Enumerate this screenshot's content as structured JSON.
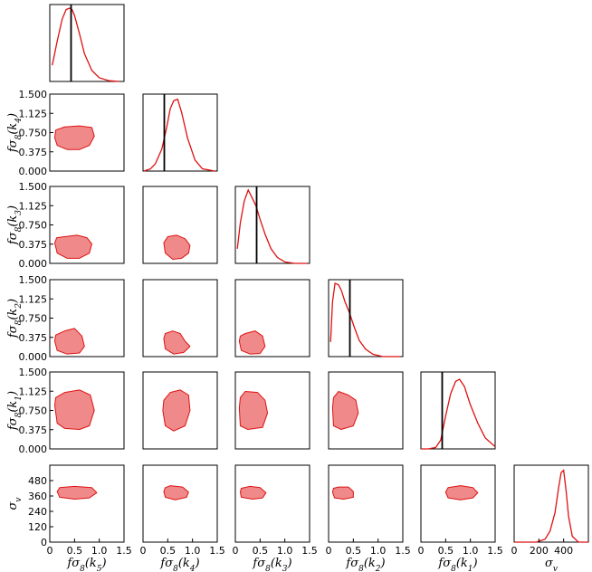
{
  "chart_data": {
    "type": "corner",
    "title": "",
    "variables": [
      "fσ8(k5)",
      "fσ8(k4)",
      "fσ8(k3)",
      "fσ8(k2)",
      "fσ8(k1)",
      "σv"
    ],
    "axis_labels": {
      "x": [
        "fσ8(k5)",
        "fσ8(k4)",
        "fσ8(k3)",
        "fσ8(k2)",
        "fσ8(k1)",
        "σv"
      ],
      "y": [
        "fσ8(k4)",
        "fσ8(k3)",
        "fσ8(k2)",
        "fσ8(k1)",
        "σv"
      ]
    },
    "fs8_axis": {
      "range": [
        0,
        1.5
      ],
      "ticks": [
        0.0,
        0.375,
        0.75,
        1.125,
        1.5
      ],
      "y_tick_labels": [
        "0.000",
        "0.375",
        "0.750",
        "1.125",
        "1.500"
      ],
      "x_tick_labels": [
        "0",
        "0.5",
        "1.0",
        "1.5"
      ],
      "x_ticks": [
        0,
        0.5,
        1.0,
        1.5
      ]
    },
    "sigma_v_axis": {
      "range": [
        0,
        600
      ],
      "ticks": [
        0,
        120,
        240,
        360,
        480
      ],
      "y_tick_labels": [
        "0",
        "120",
        "240",
        "360",
        "480"
      ],
      "x_ticks": [
        0,
        200,
        400
      ],
      "x_tick_labels": [
        "0",
        "200",
        "400"
      ]
    },
    "truth_value": 0.43,
    "line_color": "#dd1111",
    "contour_fill": "#f08a8a",
    "marginals": [
      {
        "variable": "fσ8(k5)",
        "x": [
          0.05,
          0.15,
          0.25,
          0.33,
          0.4,
          0.45,
          0.5,
          0.6,
          0.7,
          0.85,
          1.0,
          1.2,
          1.4
        ],
        "y": [
          0.22,
          0.55,
          0.85,
          0.98,
          1.0,
          0.98,
          0.9,
          0.65,
          0.38,
          0.15,
          0.05,
          0.01,
          0.0
        ]
      },
      {
        "variable": "fσ8(k4)",
        "x": [
          0.02,
          0.15,
          0.25,
          0.38,
          0.48,
          0.55,
          0.62,
          0.7,
          0.78,
          0.9,
          1.05,
          1.2,
          1.45
        ],
        "y": [
          0.0,
          0.03,
          0.1,
          0.3,
          0.6,
          0.85,
          0.96,
          0.98,
          0.8,
          0.45,
          0.15,
          0.03,
          0.0
        ]
      },
      {
        "variable": "fσ8(k3)",
        "x": [
          0.04,
          0.1,
          0.18,
          0.26,
          0.32,
          0.42,
          0.5,
          0.6,
          0.72,
          0.85,
          1.0,
          1.2,
          1.45
        ],
        "y": [
          0.2,
          0.55,
          0.85,
          1.0,
          0.92,
          0.78,
          0.6,
          0.4,
          0.2,
          0.08,
          0.02,
          0.0,
          0.0
        ]
      },
      {
        "variable": "fσ8(k2)",
        "x": [
          0.04,
          0.08,
          0.13,
          0.2,
          0.26,
          0.33,
          0.42,
          0.52,
          0.62,
          0.75,
          0.9,
          1.1,
          1.45
        ],
        "y": [
          0.2,
          0.75,
          1.0,
          0.98,
          0.9,
          0.75,
          0.6,
          0.4,
          0.22,
          0.1,
          0.03,
          0.0,
          0.0
        ]
      },
      {
        "variable": "fσ8(k1)",
        "x": [
          0.0,
          0.15,
          0.3,
          0.4,
          0.5,
          0.6,
          0.7,
          0.78,
          0.88,
          1.0,
          1.15,
          1.3,
          1.5
        ],
        "y": [
          0.0,
          0.0,
          0.02,
          0.12,
          0.45,
          0.75,
          0.92,
          0.95,
          0.85,
          0.6,
          0.35,
          0.15,
          0.03
        ]
      },
      {
        "variable": "σv",
        "x": [
          0,
          180,
          250,
          290,
          330,
          360,
          380,
          400,
          420,
          440,
          470,
          520,
          600
        ],
        "y": [
          0.0,
          0.0,
          0.04,
          0.15,
          0.4,
          0.75,
          0.95,
          0.98,
          0.7,
          0.35,
          0.08,
          0.0,
          0.0
        ]
      }
    ],
    "contours": [
      {
        "x": "fσ8(k5)",
        "y": "fσ8(k4)",
        "points": [
          [
            0.1,
            0.65
          ],
          [
            0.15,
            0.5
          ],
          [
            0.35,
            0.42
          ],
          [
            0.6,
            0.42
          ],
          [
            0.8,
            0.5
          ],
          [
            0.9,
            0.68
          ],
          [
            0.85,
            0.85
          ],
          [
            0.6,
            0.88
          ],
          [
            0.3,
            0.86
          ],
          [
            0.12,
            0.8
          ]
        ]
      },
      {
        "x": "fσ8(k5)",
        "y": "fσ8(k3)",
        "points": [
          [
            0.1,
            0.4
          ],
          [
            0.15,
            0.2
          ],
          [
            0.35,
            0.1
          ],
          [
            0.6,
            0.1
          ],
          [
            0.8,
            0.2
          ],
          [
            0.85,
            0.38
          ],
          [
            0.75,
            0.5
          ],
          [
            0.55,
            0.55
          ],
          [
            0.3,
            0.52
          ],
          [
            0.14,
            0.5
          ]
        ]
      },
      {
        "x": "fσ8(k4)",
        "y": "fσ8(k3)",
        "points": [
          [
            0.42,
            0.4
          ],
          [
            0.45,
            0.2
          ],
          [
            0.6,
            0.08
          ],
          [
            0.78,
            0.1
          ],
          [
            0.92,
            0.2
          ],
          [
            0.95,
            0.35
          ],
          [
            0.85,
            0.48
          ],
          [
            0.68,
            0.55
          ],
          [
            0.5,
            0.52
          ]
        ]
      },
      {
        "x": "fσ8(k5)",
        "y": "fσ8(k2)",
        "points": [
          [
            0.1,
            0.3
          ],
          [
            0.15,
            0.12
          ],
          [
            0.35,
            0.05
          ],
          [
            0.6,
            0.07
          ],
          [
            0.7,
            0.2
          ],
          [
            0.65,
            0.4
          ],
          [
            0.5,
            0.55
          ],
          [
            0.3,
            0.5
          ],
          [
            0.12,
            0.42
          ]
        ]
      },
      {
        "x": "fσ8(k4)",
        "y": "fσ8(k2)",
        "points": [
          [
            0.42,
            0.35
          ],
          [
            0.45,
            0.15
          ],
          [
            0.62,
            0.05
          ],
          [
            0.82,
            0.08
          ],
          [
            0.95,
            0.2
          ],
          [
            0.85,
            0.3
          ],
          [
            0.75,
            0.45
          ],
          [
            0.6,
            0.5
          ],
          [
            0.45,
            0.45
          ]
        ]
      },
      {
        "x": "fσ8(k3)",
        "y": "fσ8(k2)",
        "points": [
          [
            0.08,
            0.3
          ],
          [
            0.12,
            0.12
          ],
          [
            0.3,
            0.05
          ],
          [
            0.5,
            0.06
          ],
          [
            0.6,
            0.2
          ],
          [
            0.55,
            0.4
          ],
          [
            0.4,
            0.5
          ],
          [
            0.2,
            0.45
          ],
          [
            0.1,
            0.4
          ]
        ]
      },
      {
        "x": "fσ8(k5)",
        "y": "fσ8(k1)",
        "points": [
          [
            0.1,
            0.85
          ],
          [
            0.15,
            0.5
          ],
          [
            0.3,
            0.4
          ],
          [
            0.6,
            0.38
          ],
          [
            0.8,
            0.45
          ],
          [
            0.9,
            0.75
          ],
          [
            0.82,
            1.05
          ],
          [
            0.6,
            1.15
          ],
          [
            0.3,
            1.1
          ],
          [
            0.12,
            1.0
          ]
        ]
      },
      {
        "x": "fσ8(k4)",
        "y": "fσ8(k1)",
        "points": [
          [
            0.4,
            0.75
          ],
          [
            0.45,
            0.45
          ],
          [
            0.62,
            0.35
          ],
          [
            0.85,
            0.45
          ],
          [
            0.95,
            0.75
          ],
          [
            0.92,
            1.05
          ],
          [
            0.75,
            1.15
          ],
          [
            0.55,
            1.1
          ],
          [
            0.42,
            0.95
          ]
        ]
      },
      {
        "x": "fσ8(k3)",
        "y": "fσ8(k1)",
        "points": [
          [
            0.08,
            0.8
          ],
          [
            0.1,
            0.45
          ],
          [
            0.25,
            0.38
          ],
          [
            0.55,
            0.42
          ],
          [
            0.65,
            0.7
          ],
          [
            0.6,
            0.95
          ],
          [
            0.45,
            1.1
          ],
          [
            0.2,
            1.12
          ],
          [
            0.1,
            1.0
          ]
        ]
      },
      {
        "x": "fσ8(k2)",
        "y": "fσ8(k1)",
        "points": [
          [
            0.08,
            0.8
          ],
          [
            0.1,
            0.45
          ],
          [
            0.25,
            0.38
          ],
          [
            0.5,
            0.45
          ],
          [
            0.6,
            0.7
          ],
          [
            0.55,
            0.95
          ],
          [
            0.4,
            1.05
          ],
          [
            0.2,
            1.12
          ],
          [
            0.1,
            1.0
          ]
        ]
      },
      {
        "x": "fσ8(k5)",
        "y": "σv",
        "points": [
          [
            0.15,
            395
          ],
          [
            0.2,
            350
          ],
          [
            0.5,
            335
          ],
          [
            0.8,
            345
          ],
          [
            0.95,
            385
          ],
          [
            0.85,
            425
          ],
          [
            0.5,
            435
          ],
          [
            0.2,
            425
          ]
        ]
      },
      {
        "x": "fσ8(k4)",
        "y": "σv",
        "points": [
          [
            0.42,
            395
          ],
          [
            0.45,
            350
          ],
          [
            0.65,
            330
          ],
          [
            0.88,
            350
          ],
          [
            0.92,
            390
          ],
          [
            0.8,
            430
          ],
          [
            0.55,
            440
          ],
          [
            0.45,
            425
          ]
        ]
      },
      {
        "x": "fσ8(k3)",
        "y": "σv",
        "points": [
          [
            0.1,
            390
          ],
          [
            0.12,
            350
          ],
          [
            0.35,
            335
          ],
          [
            0.55,
            345
          ],
          [
            0.62,
            385
          ],
          [
            0.5,
            425
          ],
          [
            0.3,
            435
          ],
          [
            0.12,
            420
          ]
        ]
      },
      {
        "x": "fσ8(k2)",
        "y": "σv",
        "points": [
          [
            0.08,
            390
          ],
          [
            0.12,
            345
          ],
          [
            0.3,
            335
          ],
          [
            0.5,
            350
          ],
          [
            0.5,
            395
          ],
          [
            0.4,
            430
          ],
          [
            0.2,
            430
          ],
          [
            0.1,
            420
          ]
        ]
      },
      {
        "x": "fσ8(k1)",
        "y": "σv",
        "points": [
          [
            0.5,
            390
          ],
          [
            0.55,
            345
          ],
          [
            0.8,
            330
          ],
          [
            1.05,
            345
          ],
          [
            1.15,
            385
          ],
          [
            1.05,
            425
          ],
          [
            0.8,
            440
          ],
          [
            0.55,
            425
          ]
        ]
      }
    ]
  }
}
